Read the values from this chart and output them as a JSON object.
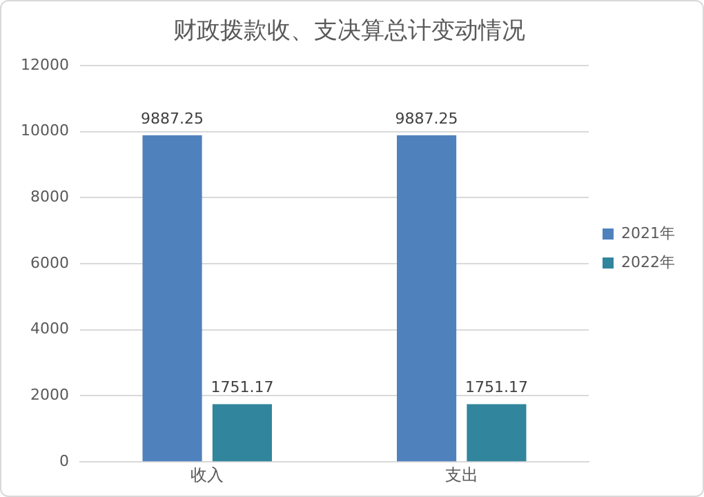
{
  "chart_data": {
    "type": "bar",
    "title": "财政拨款收、支决算总计变动情况",
    "categories": [
      "收入",
      "支出"
    ],
    "series": [
      {
        "name": "2021年",
        "color": "#4f81bd",
        "values": [
          9887.25,
          9887.25
        ]
      },
      {
        "name": "2022年",
        "color": "#31859c",
        "values": [
          1751.17,
          1751.17
        ]
      }
    ],
    "ylim": [
      0,
      12000
    ],
    "yticks": [
      0,
      2000,
      4000,
      6000,
      8000,
      10000,
      12000
    ],
    "grid": "y",
    "legend": "right",
    "data_labels": true
  }
}
